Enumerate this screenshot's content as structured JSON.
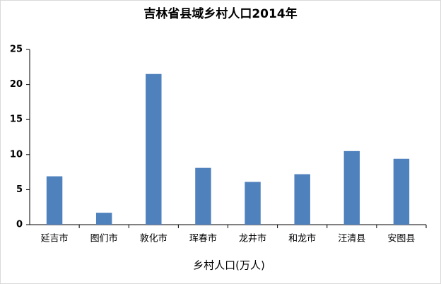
{
  "chart_data": {
    "type": "bar",
    "title": "吉林省县域乡村人口2014年",
    "x_label": "乡村人口(万人)",
    "categories": [
      "延吉市",
      "图们市",
      "敦化市",
      "珲春市",
      "龙井市",
      "和龙市",
      "汪清县",
      "安图县"
    ],
    "values": [
      6.9,
      1.7,
      21.5,
      8.1,
      6.1,
      7.2,
      10.5,
      9.4
    ],
    "color": "#4f81bd",
    "ylim": [
      0,
      25
    ],
    "yticks": [
      0,
      5,
      10,
      15,
      20,
      25
    ],
    "grid": false
  }
}
